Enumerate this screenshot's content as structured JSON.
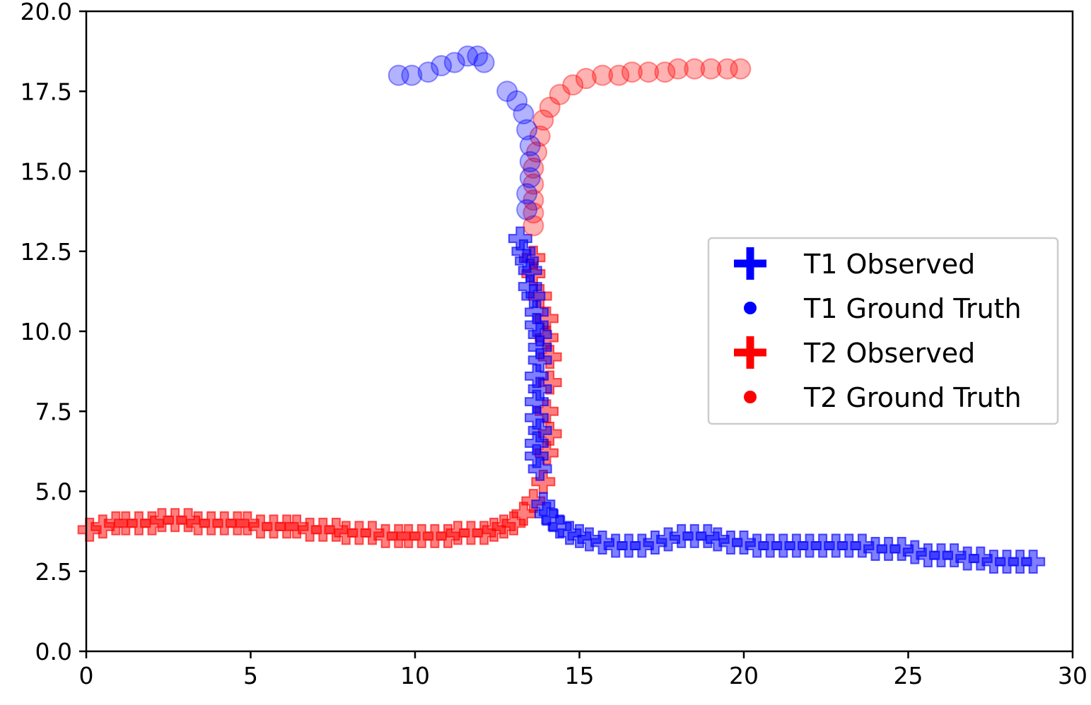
{
  "chart_data": {
    "type": "scatter",
    "title": "",
    "xlabel": "",
    "ylabel": "",
    "xlim": [
      0,
      30
    ],
    "ylim": [
      0,
      20
    ],
    "grid": false,
    "legend_position": "right",
    "x_ticks": [
      "0",
      "5",
      "10",
      "15",
      "20",
      "25",
      "30"
    ],
    "y_ticks": [
      "0.0",
      "2.5",
      "5.0",
      "7.5",
      "10.0",
      "12.5",
      "15.0",
      "17.5",
      "20.0"
    ],
    "series": [
      {
        "name": "T1 Observed",
        "marker": "plus",
        "color": "#0000ff",
        "points": [
          [
            13.2,
            12.9
          ],
          [
            13.3,
            12.5
          ],
          [
            13.4,
            12.2
          ],
          [
            13.5,
            11.9
          ],
          [
            13.5,
            11.4
          ],
          [
            13.6,
            11.1
          ],
          [
            13.7,
            10.6
          ],
          [
            13.7,
            10.2
          ],
          [
            13.8,
            9.9
          ],
          [
            13.8,
            9.5
          ],
          [
            13.8,
            9.1
          ],
          [
            13.7,
            8.6
          ],
          [
            13.8,
            8.2
          ],
          [
            13.7,
            7.8
          ],
          [
            13.7,
            7.3
          ],
          [
            13.8,
            6.9
          ],
          [
            13.7,
            6.5
          ],
          [
            13.7,
            6.1
          ],
          [
            13.8,
            5.7
          ],
          [
            13.9,
            4.6
          ],
          [
            14.0,
            4.3
          ],
          [
            14.2,
            4.1
          ],
          [
            14.4,
            3.9
          ],
          [
            14.7,
            3.7
          ],
          [
            15.0,
            3.6
          ],
          [
            15.3,
            3.5
          ],
          [
            15.7,
            3.4
          ],
          [
            16.1,
            3.3
          ],
          [
            16.5,
            3.3
          ],
          [
            16.9,
            3.3
          ],
          [
            17.3,
            3.4
          ],
          [
            17.7,
            3.5
          ],
          [
            18.1,
            3.6
          ],
          [
            18.5,
            3.6
          ],
          [
            18.9,
            3.6
          ],
          [
            19.2,
            3.5
          ],
          [
            19.6,
            3.4
          ],
          [
            20.0,
            3.4
          ],
          [
            20.4,
            3.3
          ],
          [
            20.8,
            3.3
          ],
          [
            21.2,
            3.3
          ],
          [
            21.6,
            3.3
          ],
          [
            22.0,
            3.3
          ],
          [
            22.4,
            3.3
          ],
          [
            22.8,
            3.3
          ],
          [
            23.2,
            3.3
          ],
          [
            23.6,
            3.3
          ],
          [
            24.0,
            3.2
          ],
          [
            24.4,
            3.2
          ],
          [
            24.8,
            3.2
          ],
          [
            25.2,
            3.1
          ],
          [
            25.6,
            3.0
          ],
          [
            26.0,
            3.0
          ],
          [
            26.4,
            3.0
          ],
          [
            26.8,
            2.9
          ],
          [
            27.2,
            2.9
          ],
          [
            27.6,
            2.8
          ],
          [
            28.0,
            2.8
          ],
          [
            28.4,
            2.8
          ],
          [
            28.8,
            2.8
          ]
        ]
      },
      {
        "name": "T1 Ground Truth",
        "marker": "circle",
        "color": "#0000ff",
        "points": [
          [
            9.5,
            18.0
          ],
          [
            9.9,
            18.0
          ],
          [
            10.4,
            18.1
          ],
          [
            10.8,
            18.3
          ],
          [
            11.2,
            18.4
          ],
          [
            11.6,
            18.6
          ],
          [
            11.9,
            18.6
          ],
          [
            12.1,
            18.4
          ],
          [
            12.8,
            17.5
          ],
          [
            13.1,
            17.2
          ],
          [
            13.3,
            16.8
          ],
          [
            13.4,
            16.3
          ],
          [
            13.5,
            15.8
          ],
          [
            13.5,
            15.3
          ],
          [
            13.5,
            14.8
          ],
          [
            13.4,
            14.3
          ],
          [
            13.4,
            13.8
          ]
        ]
      },
      {
        "name": "T2 Observed",
        "marker": "plus",
        "color": "#ff0000",
        "points": [
          [
            0.1,
            3.8
          ],
          [
            0.5,
            3.9
          ],
          [
            0.9,
            4.0
          ],
          [
            1.2,
            4.0
          ],
          [
            1.6,
            4.0
          ],
          [
            2.0,
            4.0
          ],
          [
            2.3,
            4.1
          ],
          [
            2.7,
            4.1
          ],
          [
            3.1,
            4.1
          ],
          [
            3.4,
            4.0
          ],
          [
            3.8,
            4.0
          ],
          [
            4.2,
            4.0
          ],
          [
            4.6,
            4.0
          ],
          [
            4.9,
            4.0
          ],
          [
            5.3,
            3.9
          ],
          [
            5.7,
            3.9
          ],
          [
            6.1,
            3.9
          ],
          [
            6.4,
            3.9
          ],
          [
            6.8,
            3.8
          ],
          [
            7.2,
            3.8
          ],
          [
            7.6,
            3.8
          ],
          [
            7.9,
            3.7
          ],
          [
            8.3,
            3.7
          ],
          [
            8.7,
            3.7
          ],
          [
            9.1,
            3.6
          ],
          [
            9.5,
            3.6
          ],
          [
            9.8,
            3.6
          ],
          [
            10.2,
            3.6
          ],
          [
            10.6,
            3.6
          ],
          [
            11.0,
            3.6
          ],
          [
            11.3,
            3.7
          ],
          [
            11.7,
            3.7
          ],
          [
            12.1,
            3.7
          ],
          [
            12.4,
            3.8
          ],
          [
            12.7,
            3.9
          ],
          [
            13.0,
            4.0
          ],
          [
            13.3,
            4.3
          ],
          [
            13.6,
            4.7
          ],
          [
            13.9,
            5.3
          ],
          [
            14.0,
            6.2
          ],
          [
            14.1,
            6.8
          ],
          [
            14.0,
            7.5
          ],
          [
            14.1,
            8.4
          ],
          [
            14.1,
            9.2
          ],
          [
            14.0,
            9.8
          ],
          [
            14.0,
            10.4
          ],
          [
            13.8,
            11.1
          ],
          [
            13.6,
            11.8
          ],
          [
            13.6,
            12.3
          ]
        ]
      },
      {
        "name": "T2 Ground Truth",
        "marker": "circle",
        "color": "#ff0000",
        "points": [
          [
            13.6,
            13.3
          ],
          [
            13.6,
            13.7
          ],
          [
            13.6,
            14.1
          ],
          [
            13.6,
            14.6
          ],
          [
            13.6,
            15.1
          ],
          [
            13.7,
            15.6
          ],
          [
            13.8,
            16.1
          ],
          [
            13.9,
            16.6
          ],
          [
            14.1,
            17.0
          ],
          [
            14.4,
            17.4
          ],
          [
            14.8,
            17.7
          ],
          [
            15.2,
            17.9
          ],
          [
            15.7,
            18.0
          ],
          [
            16.2,
            18.0
          ],
          [
            16.6,
            18.1
          ],
          [
            17.1,
            18.1
          ],
          [
            17.6,
            18.1
          ],
          [
            18.0,
            18.2
          ],
          [
            18.5,
            18.2
          ],
          [
            19.0,
            18.2
          ],
          [
            19.5,
            18.2
          ],
          [
            19.9,
            18.2
          ]
        ]
      }
    ]
  }
}
